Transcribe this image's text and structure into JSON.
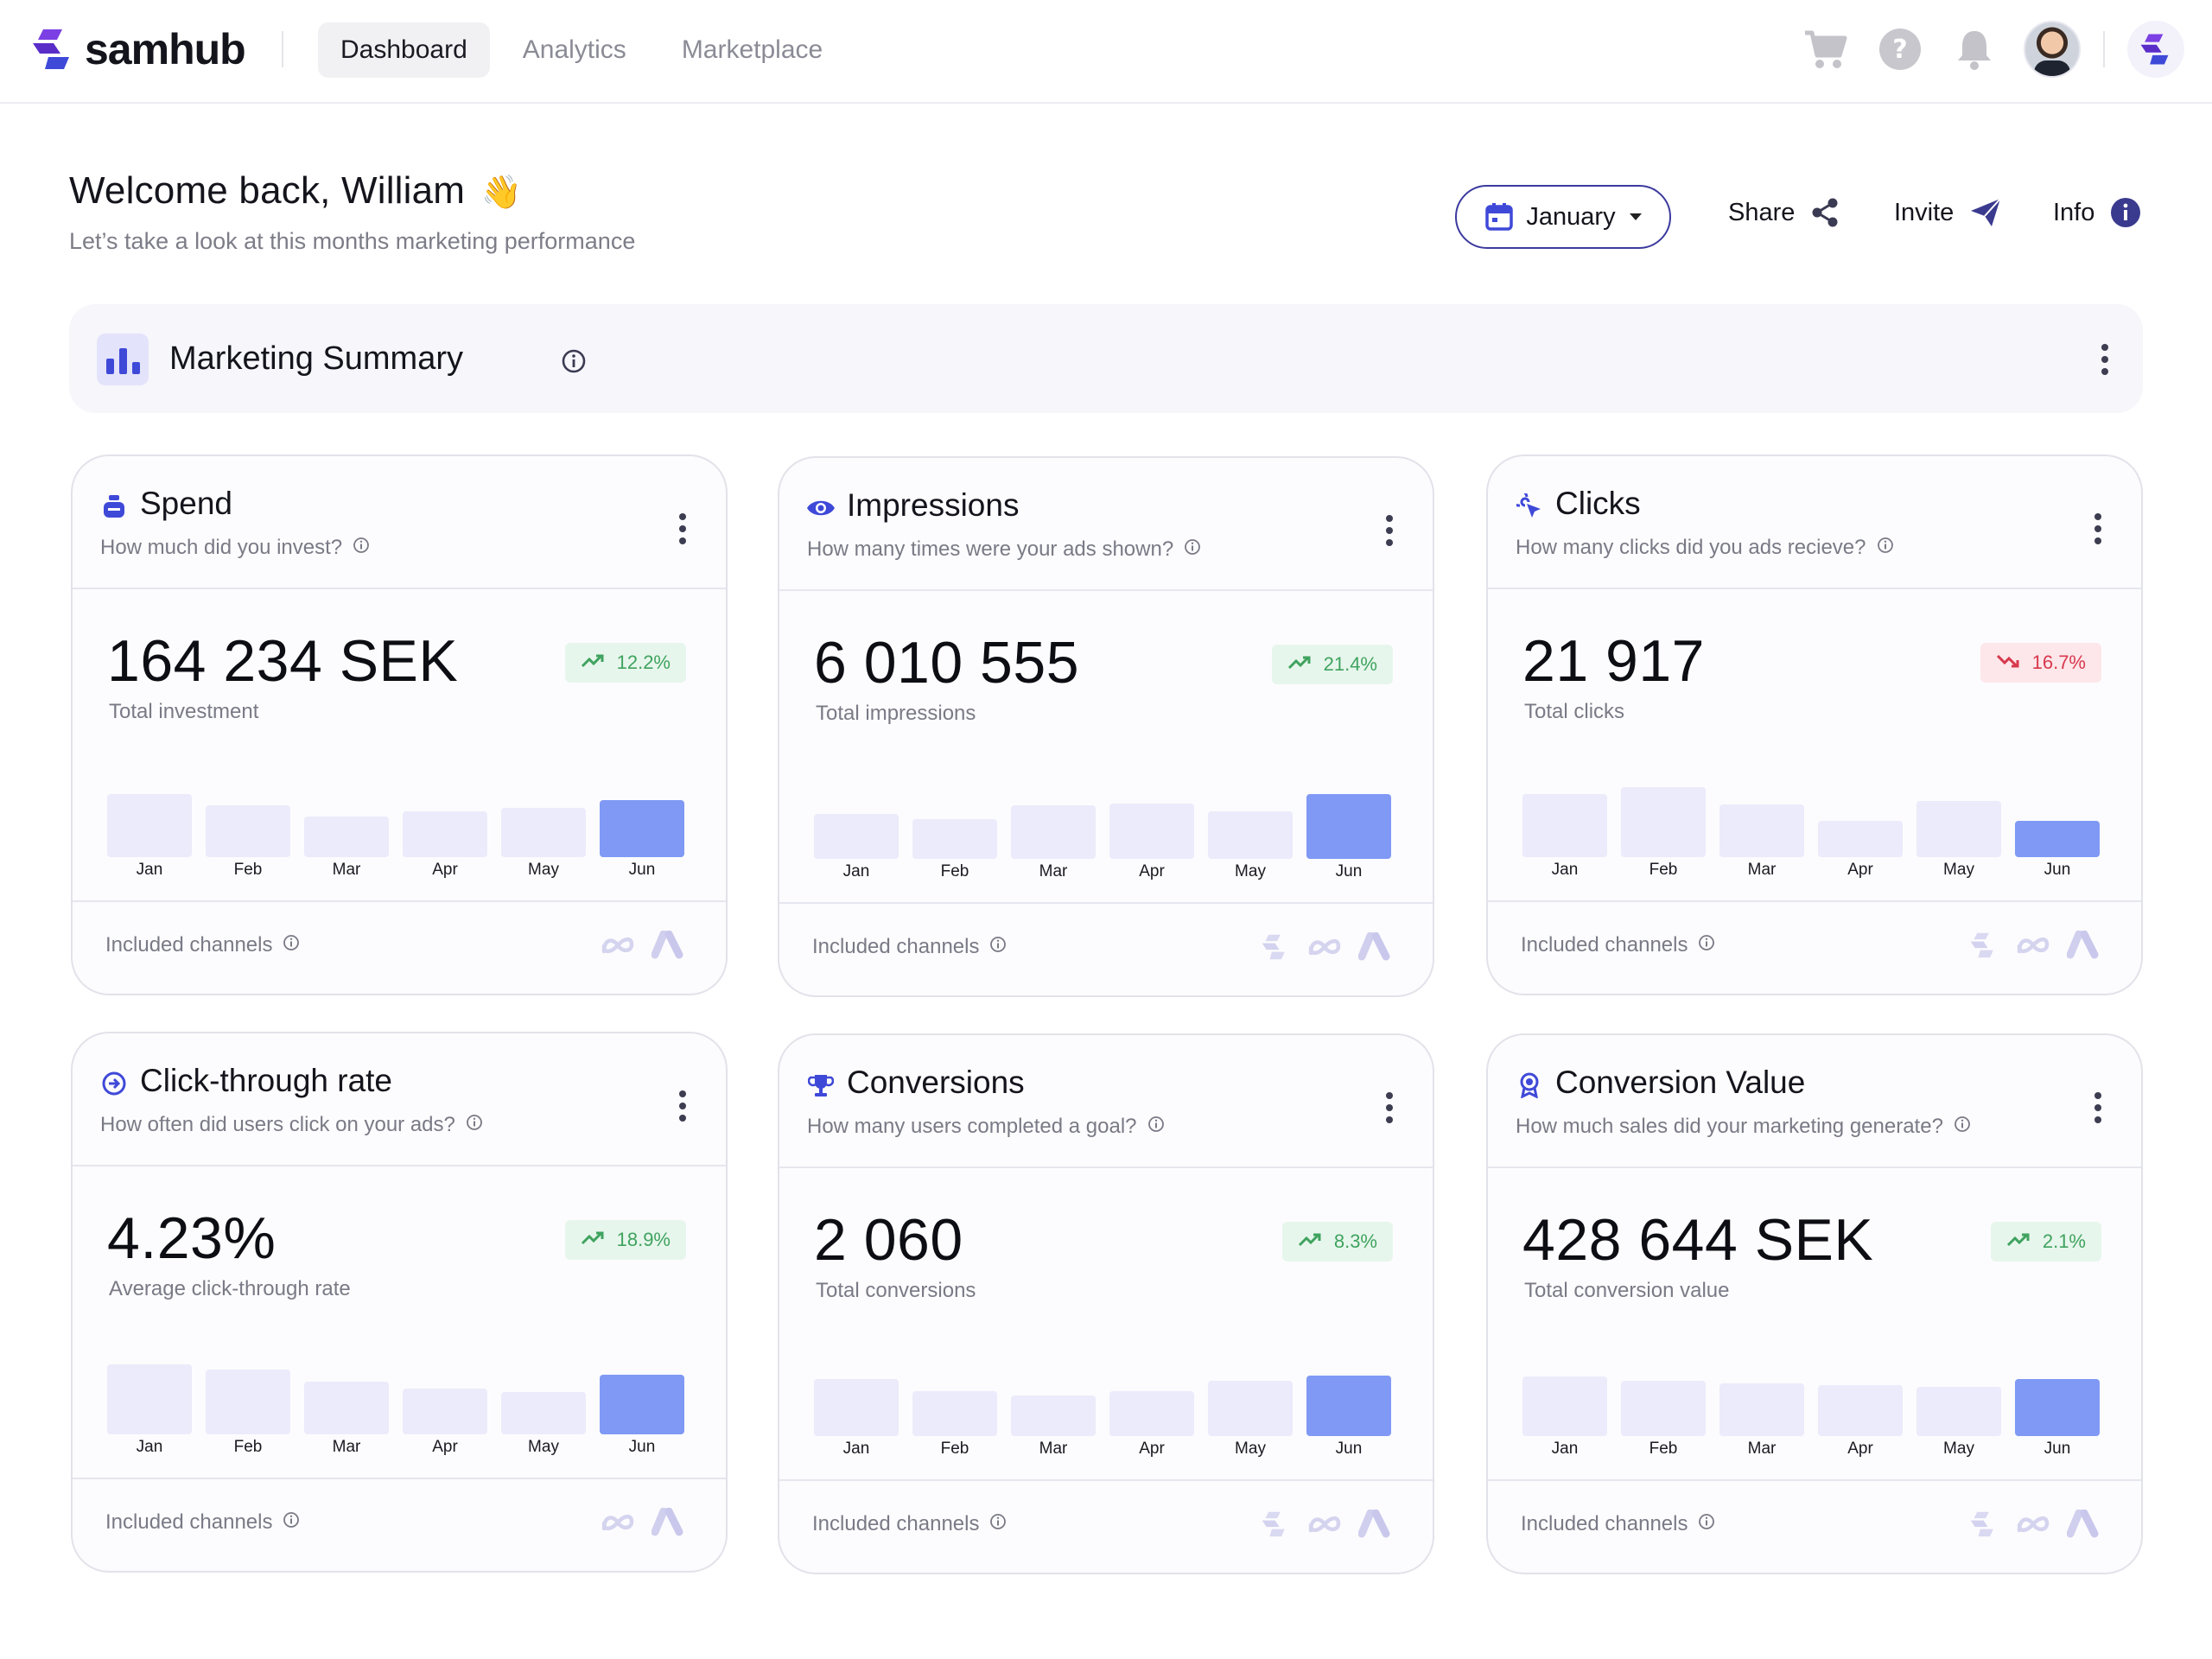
{
  "brand": {
    "name": "samhub"
  },
  "nav": {
    "tabs": [
      {
        "label": "Dashboard",
        "active": true
      },
      {
        "label": "Analytics"
      },
      {
        "label": "Marketplace"
      }
    ]
  },
  "top_icons": [
    "cart-icon",
    "help-icon",
    "bell-icon",
    "user-avatar",
    "samhub-app-icon"
  ],
  "header": {
    "welcome": "Welcome back, William",
    "wave_emoji": "👋",
    "subtitle": "Let’s take a look at this months marketing performance",
    "month": "January",
    "share": "Share",
    "invite": "Invite",
    "info": "Info"
  },
  "summary": {
    "title": "Marketing Summary"
  },
  "colors": {
    "accent": "#3c3a9e",
    "highlight_bar": "#7f99f4",
    "bar": "#ebebfb",
    "up": "#3fa35f",
    "down": "#d8384d"
  },
  "footer_label": "Included channels",
  "cards": [
    {
      "icon": "money-bag-icon",
      "title": "Spend",
      "question": "How much did you invest?",
      "value": "164 234 SEK",
      "label": "Total investment",
      "trend": "up",
      "change": "12.2%",
      "months": [
        "Jan",
        "Feb",
        "Mar",
        "Apr",
        "May",
        "Jun"
      ],
      "bar_levels": [
        0.56,
        0.46,
        0.36,
        0.41,
        0.44,
        0.51
      ],
      "channels": [
        "meta-icon",
        "google-ads-icon"
      ]
    },
    {
      "icon": "eye-icon",
      "title": "Impressions",
      "question": "How many times were your ads shown?",
      "value": "6 010 555",
      "label": "Total impressions",
      "trend": "up",
      "change": "21.4%",
      "months": [
        "Jan",
        "Feb",
        "Mar",
        "Apr",
        "May",
        "Jun"
      ],
      "bar_levels": [
        0.4,
        0.35,
        0.48,
        0.49,
        0.42,
        0.58
      ],
      "channels": [
        "samhub-icon",
        "meta-icon",
        "google-ads-icon"
      ]
    },
    {
      "icon": "cursor-click-icon",
      "title": "Clicks",
      "question": "How many clicks did you ads recieve?",
      "value": "21 917",
      "label": "Total clicks",
      "trend": "down",
      "change": "16.7%",
      "months": [
        "Jan",
        "Feb",
        "Mar",
        "Apr",
        "May",
        "Jun"
      ],
      "bar_levels": [
        0.56,
        0.62,
        0.47,
        0.32,
        0.5,
        0.32
      ],
      "channels": [
        "samhub-icon",
        "meta-icon",
        "google-ads-icon"
      ]
    },
    {
      "icon": "arrow-circle-icon",
      "title": "Click-through rate",
      "question": "How often did users click on your ads?",
      "value": "4.23%",
      "label": "Average click-through rate",
      "trend": "up",
      "change": "18.9%",
      "months": [
        "Jan",
        "Feb",
        "Mar",
        "Apr",
        "May",
        "Jun"
      ],
      "bar_levels": [
        0.62,
        0.58,
        0.47,
        0.41,
        0.38,
        0.53
      ],
      "channels": [
        "meta-icon",
        "google-ads-icon"
      ]
    },
    {
      "icon": "trophy-icon",
      "title": "Conversions",
      "question": "How many users completed a goal?",
      "value": "2 060",
      "label": "Total conversions",
      "trend": "up",
      "change": "8.3%",
      "months": [
        "Jan",
        "Feb",
        "Mar",
        "Apr",
        "May",
        "Jun"
      ],
      "bar_levels": [
        0.51,
        0.4,
        0.36,
        0.4,
        0.49,
        0.54
      ],
      "channels": [
        "samhub-icon",
        "meta-icon",
        "google-ads-icon"
      ]
    },
    {
      "icon": "award-ribbon-icon",
      "title": "Conversion Value",
      "question": "How much sales did your marketing generate?",
      "value": "428 644 SEK",
      "label": "Total conversion value",
      "trend": "up",
      "change": "2.1%",
      "months": [
        "Jan",
        "Feb",
        "Mar",
        "Apr",
        "May",
        "Jun"
      ],
      "bar_levels": [
        0.53,
        0.49,
        0.47,
        0.45,
        0.44,
        0.51
      ],
      "channels": [
        "samhub-icon",
        "meta-icon",
        "google-ads-icon"
      ]
    }
  ]
}
